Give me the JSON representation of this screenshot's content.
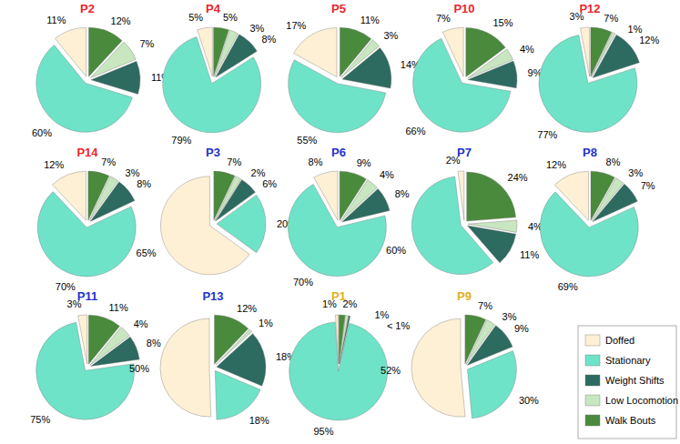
{
  "chart_data": [
    {
      "type": "pie",
      "title": "P2",
      "color": "#e8262a",
      "data_labels": true,
      "categories": [
        "Doffed",
        "Stationary",
        "Weight Shifts",
        "Low Locomotion",
        "Walk Bouts"
      ],
      "colors": [
        "#fdf0d5",
        "#6ee3c8",
        "#2d6a5f",
        "#c8e6c0",
        "#4a8a3c"
      ],
      "values": [
        11,
        60,
        11,
        7,
        12
      ],
      "value_labels": [
        "11%",
        "60%",
        "11%",
        "7%",
        "12%"
      ]
    },
    {
      "type": "pie",
      "title": "P4",
      "color": "#e8262a",
      "data_labels": true,
      "categories": [
        "Doffed",
        "Stationary",
        "Weight Shifts",
        "Low Locomotion",
        "Walk Bouts"
      ],
      "colors": [
        "#fdf0d5",
        "#6ee3c8",
        "#2d6a5f",
        "#c8e6c0",
        "#4a8a3c"
      ],
      "values": [
        5,
        79,
        8,
        3,
        5
      ],
      "value_labels": [
        "5%",
        "79%",
        "8%",
        "3%",
        "5%"
      ]
    },
    {
      "type": "pie",
      "title": "P5",
      "color": "#e8262a",
      "data_labels": true,
      "categories": [
        "Doffed",
        "Stationary",
        "Weight Shifts",
        "Low Locomotion",
        "Walk Bouts"
      ],
      "colors": [
        "#fdf0d5",
        "#6ee3c8",
        "#2d6a5f",
        "#c8e6c0",
        "#4a8a3c"
      ],
      "values": [
        17,
        55,
        14,
        3,
        11
      ],
      "value_labels": [
        "17%",
        "55%",
        "14%",
        "3%",
        "11%"
      ]
    },
    {
      "type": "pie",
      "title": "P10",
      "color": "#e8262a",
      "data_labels": true,
      "categories": [
        "Doffed",
        "Stationary",
        "Weight Shifts",
        "Low Locomotion",
        "Walk Bouts"
      ],
      "colors": [
        "#fdf0d5",
        "#6ee3c8",
        "#2d6a5f",
        "#c8e6c0",
        "#4a8a3c"
      ],
      "values": [
        7,
        66,
        9,
        4,
        15
      ],
      "value_labels": [
        "7%",
        "66%",
        "9%",
        "4%",
        "15%"
      ]
    },
    {
      "type": "pie",
      "title": "P12",
      "color": "#e8262a",
      "data_labels": true,
      "categories": [
        "Doffed",
        "Stationary",
        "Weight Shifts",
        "Low Locomotion",
        "Walk Bouts"
      ],
      "colors": [
        "#fdf0d5",
        "#6ee3c8",
        "#2d6a5f",
        "#c8e6c0",
        "#4a8a3c"
      ],
      "values": [
        3,
        77,
        12,
        1,
        7
      ],
      "value_labels": [
        "3%",
        "77%",
        "12%",
        "1%",
        "7%"
      ]
    },
    {
      "type": "pie",
      "title": "P14",
      "color": "#e8262a",
      "data_labels": true,
      "categories": [
        "Doffed",
        "Stationary",
        "Weight Shifts",
        "Low Locomotion",
        "Walk Bouts"
      ],
      "colors": [
        "#fdf0d5",
        "#6ee3c8",
        "#2d6a5f",
        "#c8e6c0",
        "#4a8a3c"
      ],
      "values": [
        12,
        70,
        8,
        3,
        7
      ],
      "value_labels": [
        "12%",
        "70%",
        "8%",
        "3%",
        "7%"
      ]
    },
    {
      "type": "pie",
      "title": "P3",
      "color": "#2233cc",
      "data_labels": true,
      "categories": [
        "Doffed",
        "Stationary",
        "Weight Shifts",
        "Low Locomotion",
        "Walk Bouts"
      ],
      "colors": [
        "#fdf0d5",
        "#6ee3c8",
        "#2d6a5f",
        "#c8e6c0",
        "#4a8a3c"
      ],
      "values": [
        65,
        20,
        6,
        2,
        7
      ],
      "value_labels": [
        "65%",
        "20%",
        "6%",
        "2%",
        "7%"
      ]
    },
    {
      "type": "pie",
      "title": "P6",
      "color": "#2233cc",
      "data_labels": true,
      "categories": [
        "Doffed",
        "Stationary",
        "Weight Shifts",
        "Low Locomotion",
        "Walk Bouts"
      ],
      "colors": [
        "#fdf0d5",
        "#6ee3c8",
        "#2d6a5f",
        "#c8e6c0",
        "#4a8a3c"
      ],
      "values": [
        8,
        70,
        8,
        4,
        9
      ],
      "value_labels": [
        "8%",
        "70%",
        "8%",
        "4%",
        "9%"
      ]
    },
    {
      "type": "pie",
      "title": "P7",
      "color": "#2233cc",
      "data_labels": true,
      "categories": [
        "Doffed",
        "Stationary",
        "Weight Shifts",
        "Low Locomotion",
        "Walk Bouts"
      ],
      "colors": [
        "#fdf0d5",
        "#6ee3c8",
        "#2d6a5f",
        "#c8e6c0",
        "#4a8a3c"
      ],
      "values": [
        2,
        60,
        11,
        4,
        24
      ],
      "value_labels": [
        "2%",
        "60%",
        "11%",
        "4%",
        "24%"
      ]
    },
    {
      "type": "pie",
      "title": "P8",
      "color": "#2233cc",
      "data_labels": true,
      "categories": [
        "Doffed",
        "Stationary",
        "Weight Shifts",
        "Low Locomotion",
        "Walk Bouts"
      ],
      "colors": [
        "#fdf0d5",
        "#6ee3c8",
        "#2d6a5f",
        "#c8e6c0",
        "#4a8a3c"
      ],
      "values": [
        12,
        69,
        7,
        3,
        8
      ],
      "value_labels": [
        "12%",
        "69%",
        "7%",
        "3%",
        "8%"
      ]
    },
    {
      "type": "pie",
      "title": "P11",
      "color": "#2233cc",
      "data_labels": true,
      "categories": [
        "Doffed",
        "Stationary",
        "Weight Shifts",
        "Low Locomotion",
        "Walk Bouts"
      ],
      "colors": [
        "#fdf0d5",
        "#6ee3c8",
        "#2d6a5f",
        "#c8e6c0",
        "#4a8a3c"
      ],
      "values": [
        3,
        75,
        8,
        4,
        11
      ],
      "value_labels": [
        "3%",
        "75%",
        "8%",
        "4%",
        "11%"
      ]
    },
    {
      "type": "pie",
      "title": "P13",
      "color": "#2233cc",
      "data_labels": true,
      "categories": [
        "Doffed",
        "Stationary",
        "Weight Shifts",
        "Low Locomotion",
        "Walk Bouts"
      ],
      "colors": [
        "#fdf0d5",
        "#6ee3c8",
        "#2d6a5f",
        "#c8e6c0",
        "#4a8a3c"
      ],
      "values": [
        50,
        18,
        18,
        1,
        12
      ],
      "value_labels": [
        "50%",
        "18%",
        "18%",
        "1%",
        "12%"
      ]
    },
    {
      "type": "pie",
      "title": "P1",
      "color": "#e0b020",
      "data_labels": true,
      "categories": [
        "Doffed",
        "Stationary",
        "Weight Shifts",
        "Low Locomotion",
        "Walk Bouts"
      ],
      "colors": [
        "#fdf0d5",
        "#6ee3c8",
        "#2d6a5f",
        "#c8e6c0",
        "#4a8a3c"
      ],
      "values": [
        1,
        95,
        0.5,
        1,
        2
      ],
      "value_labels": [
        "1%",
        "95%",
        "< 1%",
        "1%",
        "2%"
      ]
    },
    {
      "type": "pie",
      "title": "P9",
      "color": "#e0b020",
      "data_labels": true,
      "legend": "lower right",
      "categories": [
        "Doffed",
        "Stationary",
        "Weight Shifts",
        "Low Locomotion",
        "Walk Bouts"
      ],
      "colors": [
        "#fdf0d5",
        "#6ee3c8",
        "#2d6a5f",
        "#c8e6c0",
        "#4a8a3c"
      ],
      "values": [
        52,
        30,
        9,
        3,
        7
      ],
      "value_labels": [
        "52%",
        "30%",
        "9%",
        "3%",
        "7%"
      ]
    }
  ]
}
